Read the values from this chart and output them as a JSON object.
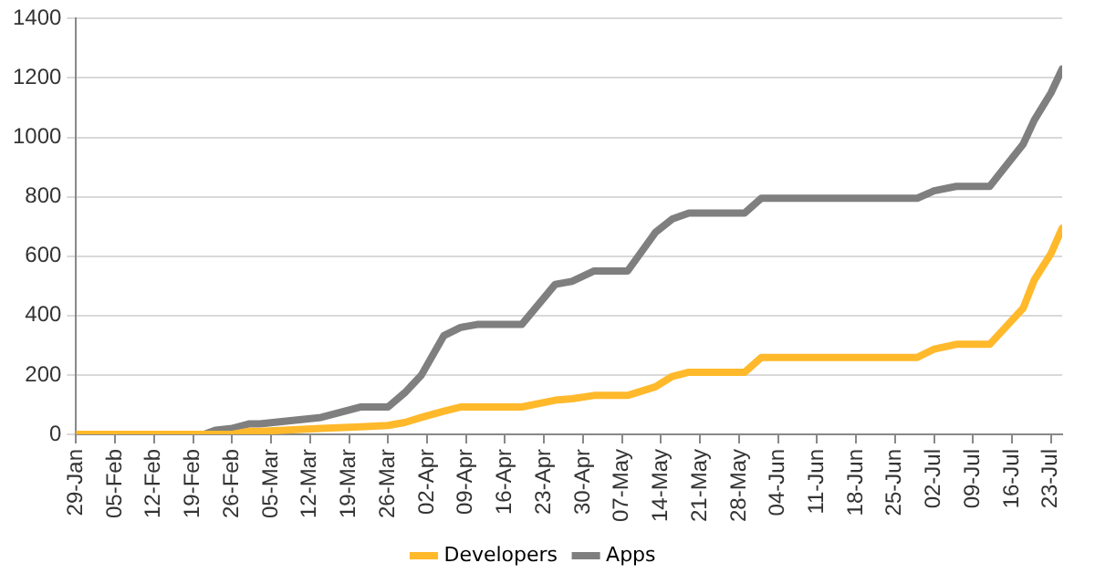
{
  "chart_data": {
    "type": "line",
    "x": [
      "--01-29",
      "--02-21",
      "--02-23",
      "--02-26",
      "--03-01",
      "--03-03",
      "--03-14",
      "--03-21",
      "--03-26",
      "--03-29",
      "--04-01",
      "--04-05",
      "--04-08",
      "--04-11",
      "--04-19",
      "--04-25",
      "--04-28",
      "--05-02",
      "--05-08",
      "--05-13",
      "--05-16",
      "--05-19",
      "--05-29",
      "--06-01",
      "--06-29",
      "--07-02",
      "--07-06",
      "--07-12",
      "--07-18",
      "--07-20",
      "--07-23",
      "--07-25"
    ],
    "series": [
      {
        "name": "Developers",
        "color": "#ffb92b",
        "values": [
          0,
          0,
          0,
          0,
          10,
          10,
          20,
          25,
          30,
          40,
          57,
          78,
          92,
          92,
          92,
          115,
          120,
          131,
          131,
          160,
          195,
          209,
          209,
          259,
          259,
          287,
          303,
          303,
          425,
          520,
          609,
          694
        ]
      },
      {
        "name": "Apps",
        "color": "#7f7f7f",
        "values": [
          0,
          0,
          14,
          20,
          35,
          35,
          57,
          92,
          92,
          140,
          200,
          332,
          360,
          370,
          370,
          505,
          515,
          550,
          550,
          680,
          725,
          745,
          745,
          795,
          795,
          820,
          835,
          835,
          977,
          1058,
          1150,
          1230
        ]
      }
    ],
    "xlim": [
      "--01-29",
      "--07-25"
    ],
    "xticks": [
      {
        "value": "--01-29",
        "label": "29-Jan"
      },
      {
        "value": "--02-05",
        "label": "05-Feb"
      },
      {
        "value": "--02-12",
        "label": "12-Feb"
      },
      {
        "value": "--02-19",
        "label": "19-Feb"
      },
      {
        "value": "--02-26",
        "label": "26-Feb"
      },
      {
        "value": "--03-05",
        "label": "05-Mar"
      },
      {
        "value": "--03-12",
        "label": "12-Mar"
      },
      {
        "value": "--03-19",
        "label": "19-Mar"
      },
      {
        "value": "--03-26",
        "label": "26-Mar"
      },
      {
        "value": "--04-02",
        "label": "02-Apr"
      },
      {
        "value": "--04-09",
        "label": "09-Apr"
      },
      {
        "value": "--04-16",
        "label": "16-Apr"
      },
      {
        "value": "--04-23",
        "label": "23-Apr"
      },
      {
        "value": "--04-30",
        "label": "30-Apr"
      },
      {
        "value": "--05-07",
        "label": "07-May"
      },
      {
        "value": "--05-14",
        "label": "14-May"
      },
      {
        "value": "--05-21",
        "label": "21-May"
      },
      {
        "value": "--05-28",
        "label": "28-May"
      },
      {
        "value": "--06-04",
        "label": "04-Jun"
      },
      {
        "value": "--06-11",
        "label": "11-Jun"
      },
      {
        "value": "--06-18",
        "label": "18-Jun"
      },
      {
        "value": "--06-25",
        "label": "25-Jun"
      },
      {
        "value": "--07-02",
        "label": "02-Jul"
      },
      {
        "value": "--07-09",
        "label": "09-Jul"
      },
      {
        "value": "--07-16",
        "label": "16-Jul"
      },
      {
        "value": "--07-23",
        "label": "23-Jul"
      }
    ],
    "ylim": [
      0,
      1400
    ],
    "yticks": [
      0,
      200,
      400,
      600,
      800,
      1000,
      1200,
      1400
    ],
    "grid": "y",
    "legend": "bottom",
    "marker": "none"
  }
}
